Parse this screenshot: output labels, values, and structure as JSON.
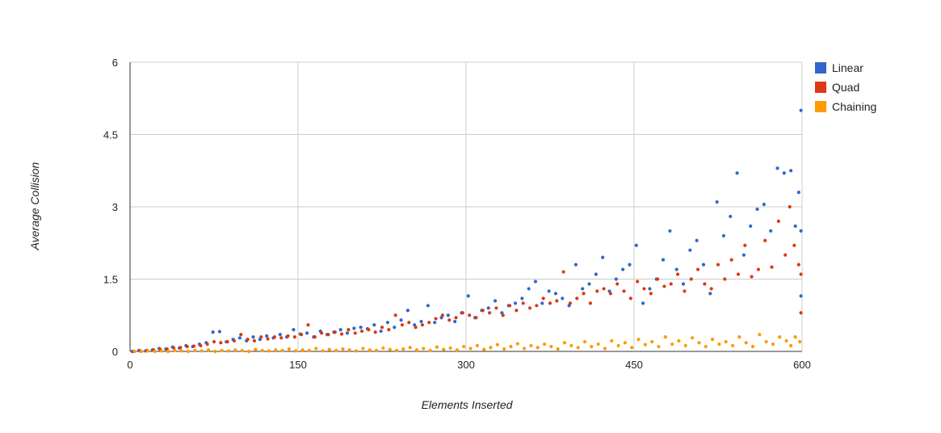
{
  "chart_data": {
    "type": "scatter",
    "title": "",
    "xlabel": "Elements Inserted",
    "ylabel": "Average Collision",
    "xlim": [
      0,
      600
    ],
    "ylim": [
      0,
      6
    ],
    "x_ticks": [
      "0",
      "150",
      "300",
      "450",
      "600"
    ],
    "y_ticks": [
      "0",
      "1.5",
      "3",
      "4.5",
      "6"
    ],
    "grid": true,
    "legend_position": "right",
    "series": [
      {
        "name": "Linear",
        "color": "#3366cc",
        "points": [
          [
            2,
            0.0
          ],
          [
            8,
            0.02
          ],
          [
            14,
            0.01
          ],
          [
            20,
            0.03
          ],
          [
            26,
            0.06
          ],
          [
            32,
            0.05
          ],
          [
            38,
            0.09
          ],
          [
            44,
            0.07
          ],
          [
            50,
            0.12
          ],
          [
            56,
            0.1
          ],
          [
            62,
            0.15
          ],
          [
            68,
            0.18
          ],
          [
            74,
            0.4
          ],
          [
            80,
            0.41
          ],
          [
            86,
            0.2
          ],
          [
            92,
            0.25
          ],
          [
            98,
            0.28
          ],
          [
            104,
            0.22
          ],
          [
            110,
            0.3
          ],
          [
            116,
            0.25
          ],
          [
            122,
            0.32
          ],
          [
            128,
            0.28
          ],
          [
            134,
            0.35
          ],
          [
            140,
            0.3
          ],
          [
            146,
            0.45
          ],
          [
            152,
            0.36
          ],
          [
            158,
            0.38
          ],
          [
            164,
            0.3
          ],
          [
            170,
            0.42
          ],
          [
            176,
            0.35
          ],
          [
            182,
            0.4
          ],
          [
            188,
            0.45
          ],
          [
            194,
            0.38
          ],
          [
            200,
            0.48
          ],
          [
            206,
            0.5
          ],
          [
            212,
            0.47
          ],
          [
            218,
            0.55
          ],
          [
            224,
            0.42
          ],
          [
            230,
            0.6
          ],
          [
            236,
            0.5
          ],
          [
            242,
            0.65
          ],
          [
            248,
            0.85
          ],
          [
            254,
            0.55
          ],
          [
            260,
            0.62
          ],
          [
            266,
            0.95
          ],
          [
            272,
            0.6
          ],
          [
            278,
            0.7
          ],
          [
            284,
            0.75
          ],
          [
            290,
            0.62
          ],
          [
            296,
            0.8
          ],
          [
            302,
            1.15
          ],
          [
            308,
            0.7
          ],
          [
            314,
            0.85
          ],
          [
            320,
            0.9
          ],
          [
            326,
            1.05
          ],
          [
            332,
            0.8
          ],
          [
            338,
            0.95
          ],
          [
            344,
            1.0
          ],
          [
            350,
            1.1
          ],
          [
            356,
            1.3
          ],
          [
            362,
            1.45
          ],
          [
            368,
            1.0
          ],
          [
            374,
            1.25
          ],
          [
            380,
            1.2
          ],
          [
            386,
            1.1
          ],
          [
            392,
            0.95
          ],
          [
            398,
            1.8
          ],
          [
            404,
            1.3
          ],
          [
            410,
            1.4
          ],
          [
            416,
            1.6
          ],
          [
            422,
            1.95
          ],
          [
            428,
            1.25
          ],
          [
            434,
            1.5
          ],
          [
            440,
            1.7
          ],
          [
            446,
            1.8
          ],
          [
            452,
            2.2
          ],
          [
            458,
            1.0
          ],
          [
            464,
            1.3
          ],
          [
            470,
            1.5
          ],
          [
            476,
            1.9
          ],
          [
            482,
            2.5
          ],
          [
            488,
            1.7
          ],
          [
            494,
            1.4
          ],
          [
            500,
            2.1
          ],
          [
            506,
            2.3
          ],
          [
            512,
            1.8
          ],
          [
            518,
            1.2
          ],
          [
            524,
            3.1
          ],
          [
            530,
            2.4
          ],
          [
            536,
            2.8
          ],
          [
            542,
            3.7
          ],
          [
            548,
            2.0
          ],
          [
            554,
            2.6
          ],
          [
            560,
            2.95
          ],
          [
            566,
            3.05
          ],
          [
            572,
            2.5
          ],
          [
            578,
            3.8
          ],
          [
            584,
            3.7
          ],
          [
            590,
            3.75
          ],
          [
            594,
            2.6
          ],
          [
            597,
            3.3
          ],
          [
            599,
            5.0
          ],
          [
            599,
            2.5
          ],
          [
            599,
            1.15
          ]
        ]
      },
      {
        "name": "Quad",
        "color": "#dc3912",
        "points": [
          [
            3,
            0.0
          ],
          [
            9,
            0.01
          ],
          [
            15,
            0.02
          ],
          [
            21,
            0.03
          ],
          [
            27,
            0.04
          ],
          [
            33,
            0.05
          ],
          [
            39,
            0.07
          ],
          [
            45,
            0.08
          ],
          [
            51,
            0.1
          ],
          [
            57,
            0.11
          ],
          [
            63,
            0.12
          ],
          [
            69,
            0.15
          ],
          [
            75,
            0.2
          ],
          [
            81,
            0.18
          ],
          [
            87,
            0.2
          ],
          [
            93,
            0.22
          ],
          [
            99,
            0.35
          ],
          [
            105,
            0.25
          ],
          [
            111,
            0.22
          ],
          [
            117,
            0.3
          ],
          [
            123,
            0.26
          ],
          [
            129,
            0.3
          ],
          [
            135,
            0.28
          ],
          [
            141,
            0.32
          ],
          [
            147,
            0.3
          ],
          [
            153,
            0.35
          ],
          [
            159,
            0.55
          ],
          [
            165,
            0.3
          ],
          [
            171,
            0.38
          ],
          [
            177,
            0.35
          ],
          [
            183,
            0.4
          ],
          [
            189,
            0.36
          ],
          [
            195,
            0.45
          ],
          [
            201,
            0.38
          ],
          [
            207,
            0.42
          ],
          [
            213,
            0.45
          ],
          [
            219,
            0.4
          ],
          [
            225,
            0.5
          ],
          [
            231,
            0.45
          ],
          [
            237,
            0.75
          ],
          [
            243,
            0.55
          ],
          [
            249,
            0.6
          ],
          [
            255,
            0.5
          ],
          [
            261,
            0.55
          ],
          [
            267,
            0.6
          ],
          [
            273,
            0.68
          ],
          [
            279,
            0.75
          ],
          [
            285,
            0.65
          ],
          [
            291,
            0.7
          ],
          [
            297,
            0.8
          ],
          [
            303,
            0.75
          ],
          [
            309,
            0.7
          ],
          [
            315,
            0.85
          ],
          [
            321,
            0.8
          ],
          [
            327,
            0.9
          ],
          [
            333,
            0.75
          ],
          [
            339,
            0.95
          ],
          [
            345,
            0.85
          ],
          [
            351,
            1.0
          ],
          [
            357,
            0.9
          ],
          [
            363,
            0.95
          ],
          [
            369,
            1.1
          ],
          [
            375,
            1.0
          ],
          [
            381,
            1.05
          ],
          [
            387,
            1.65
          ],
          [
            393,
            1.0
          ],
          [
            399,
            1.1
          ],
          [
            405,
            1.2
          ],
          [
            411,
            1.0
          ],
          [
            417,
            1.25
          ],
          [
            423,
            1.3
          ],
          [
            429,
            1.2
          ],
          [
            435,
            1.4
          ],
          [
            441,
            1.25
          ],
          [
            447,
            1.1
          ],
          [
            453,
            1.45
          ],
          [
            459,
            1.3
          ],
          [
            465,
            1.2
          ],
          [
            471,
            1.5
          ],
          [
            477,
            1.35
          ],
          [
            483,
            1.4
          ],
          [
            489,
            1.6
          ],
          [
            495,
            1.25
          ],
          [
            501,
            1.5
          ],
          [
            507,
            1.7
          ],
          [
            513,
            1.4
          ],
          [
            519,
            1.3
          ],
          [
            525,
            1.8
          ],
          [
            531,
            1.5
          ],
          [
            537,
            1.9
          ],
          [
            543,
            1.6
          ],
          [
            549,
            2.2
          ],
          [
            555,
            1.55
          ],
          [
            561,
            1.7
          ],
          [
            567,
            2.3
          ],
          [
            573,
            1.75
          ],
          [
            579,
            2.7
          ],
          [
            585,
            2.0
          ],
          [
            589,
            3.0
          ],
          [
            593,
            2.2
          ],
          [
            597,
            1.8
          ],
          [
            599,
            1.6
          ],
          [
            599,
            0.8
          ]
        ]
      },
      {
        "name": "Chaining",
        "color": "#ff9900",
        "points": [
          [
            4,
            0.0
          ],
          [
            10,
            0.0
          ],
          [
            16,
            0.01
          ],
          [
            22,
            0.0
          ],
          [
            28,
            0.01
          ],
          [
            34,
            0.0
          ],
          [
            40,
            0.02
          ],
          [
            46,
            0.01
          ],
          [
            52,
            0.0
          ],
          [
            58,
            0.02
          ],
          [
            64,
            0.01
          ],
          [
            70,
            0.03
          ],
          [
            76,
            0.0
          ],
          [
            82,
            0.02
          ],
          [
            88,
            0.01
          ],
          [
            94,
            0.03
          ],
          [
            100,
            0.02
          ],
          [
            106,
            0.0
          ],
          [
            112,
            0.04
          ],
          [
            118,
            0.02
          ],
          [
            124,
            0.01
          ],
          [
            130,
            0.03
          ],
          [
            136,
            0.02
          ],
          [
            142,
            0.05
          ],
          [
            148,
            0.01
          ],
          [
            154,
            0.03
          ],
          [
            160,
            0.02
          ],
          [
            166,
            0.06
          ],
          [
            172,
            0.01
          ],
          [
            178,
            0.04
          ],
          [
            184,
            0.02
          ],
          [
            190,
            0.05
          ],
          [
            196,
            0.03
          ],
          [
            202,
            0.01
          ],
          [
            208,
            0.06
          ],
          [
            214,
            0.03
          ],
          [
            220,
            0.02
          ],
          [
            226,
            0.07
          ],
          [
            232,
            0.04
          ],
          [
            238,
            0.02
          ],
          [
            244,
            0.05
          ],
          [
            250,
            0.08
          ],
          [
            256,
            0.03
          ],
          [
            262,
            0.06
          ],
          [
            268,
            0.02
          ],
          [
            274,
            0.09
          ],
          [
            280,
            0.04
          ],
          [
            286,
            0.07
          ],
          [
            292,
            0.03
          ],
          [
            298,
            0.1
          ],
          [
            304,
            0.06
          ],
          [
            310,
            0.12
          ],
          [
            316,
            0.04
          ],
          [
            322,
            0.08
          ],
          [
            328,
            0.14
          ],
          [
            334,
            0.05
          ],
          [
            340,
            0.1
          ],
          [
            346,
            0.16
          ],
          [
            352,
            0.06
          ],
          [
            358,
            0.12
          ],
          [
            364,
            0.08
          ],
          [
            370,
            0.15
          ],
          [
            376,
            0.1
          ],
          [
            382,
            0.05
          ],
          [
            388,
            0.18
          ],
          [
            394,
            0.12
          ],
          [
            400,
            0.08
          ],
          [
            406,
            0.2
          ],
          [
            412,
            0.1
          ],
          [
            418,
            0.15
          ],
          [
            424,
            0.06
          ],
          [
            430,
            0.22
          ],
          [
            436,
            0.12
          ],
          [
            442,
            0.18
          ],
          [
            448,
            0.08
          ],
          [
            454,
            0.25
          ],
          [
            460,
            0.14
          ],
          [
            466,
            0.2
          ],
          [
            472,
            0.1
          ],
          [
            478,
            0.3
          ],
          [
            484,
            0.15
          ],
          [
            490,
            0.22
          ],
          [
            496,
            0.12
          ],
          [
            502,
            0.28
          ],
          [
            508,
            0.18
          ],
          [
            514,
            0.1
          ],
          [
            520,
            0.25
          ],
          [
            526,
            0.15
          ],
          [
            532,
            0.2
          ],
          [
            538,
            0.12
          ],
          [
            544,
            0.3
          ],
          [
            550,
            0.18
          ],
          [
            556,
            0.1
          ],
          [
            562,
            0.35
          ],
          [
            568,
            0.2
          ],
          [
            574,
            0.15
          ],
          [
            580,
            0.3
          ],
          [
            586,
            0.22
          ],
          [
            590,
            0.12
          ],
          [
            594,
            0.3
          ],
          [
            598,
            0.2
          ]
        ]
      }
    ]
  }
}
